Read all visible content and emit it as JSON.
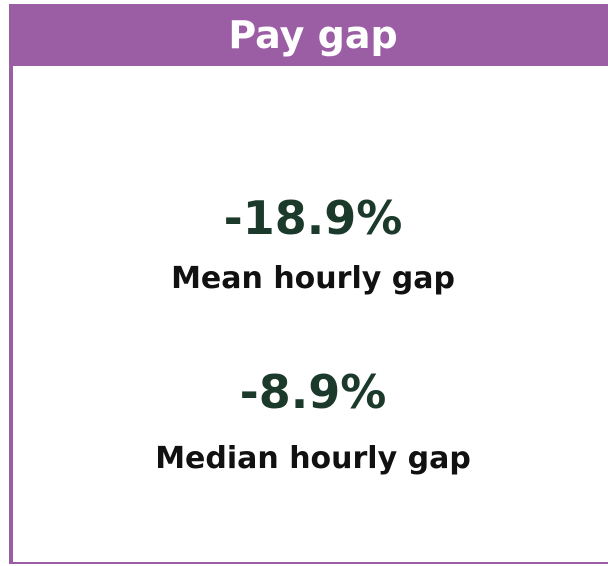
{
  "header": {
    "title": "Pay gap"
  },
  "items": [
    {
      "value": "-18.9%",
      "label": "Mean hourly gap"
    },
    {
      "value": "-8.9%",
      "label": "Median hourly gap"
    }
  ]
}
